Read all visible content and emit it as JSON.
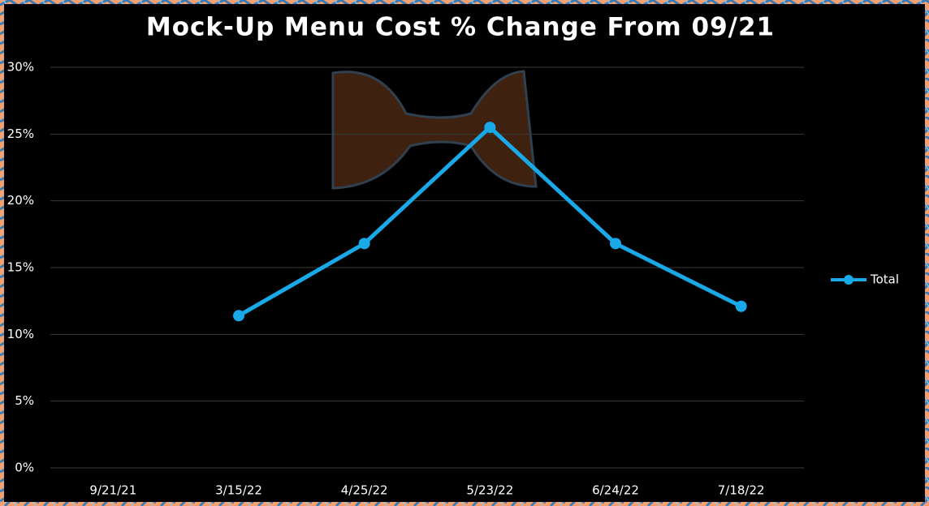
{
  "chart_data": {
    "type": "line",
    "title": "Mock-Up Menu Cost % Change From 09/21",
    "categories": [
      "9/21/21",
      "3/15/22",
      "4/25/22",
      "5/23/22",
      "6/24/22",
      "7/18/22"
    ],
    "series": [
      {
        "name": "Total",
        "color": "#19a9e8",
        "values": [
          null,
          11.4,
          16.8,
          25.5,
          16.8,
          12.1
        ]
      }
    ],
    "ylim": [
      0,
      30
    ],
    "yticks": [
      {
        "value": 0,
        "label": "0%"
      },
      {
        "value": 5,
        "label": "5%"
      },
      {
        "value": 10,
        "label": "10%"
      },
      {
        "value": 15,
        "label": "15%"
      },
      {
        "value": 20,
        "label": "20%"
      },
      {
        "value": 25,
        "label": "25%"
      },
      {
        "value": 30,
        "label": "30%"
      }
    ],
    "grid": true,
    "legend": "right"
  }
}
